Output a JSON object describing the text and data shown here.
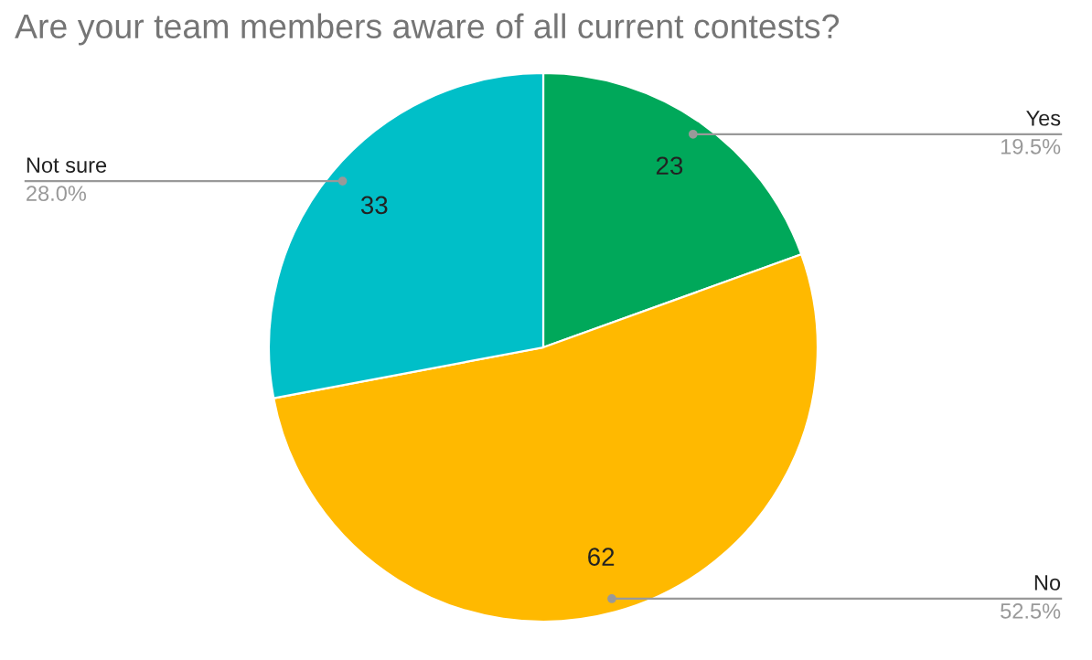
{
  "chart_data": {
    "type": "pie",
    "title": "Are your team members aware of all current contests?",
    "categories": [
      "Yes",
      "No",
      "Not sure"
    ],
    "values": [
      23,
      62,
      33
    ],
    "colors": [
      "#00a85a",
      "#ffb900",
      "#00bfc8"
    ],
    "data_labels": true,
    "annotations": [
      "19.5%",
      "52.5%",
      "28.0%"
    ]
  }
}
